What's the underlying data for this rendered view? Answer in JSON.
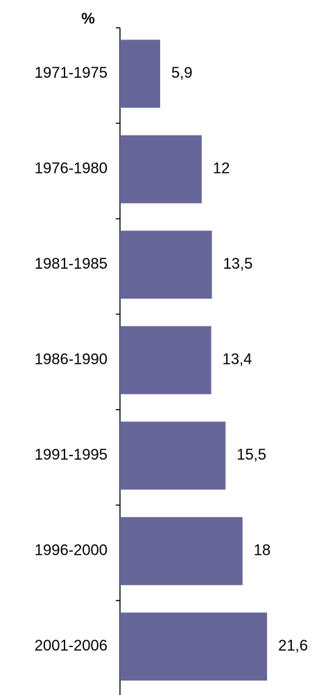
{
  "chart_data": {
    "type": "hbar",
    "axis_label": "%",
    "categories": [
      "1971-1975",
      "1976-1980",
      "1981-1985",
      "1986-1990",
      "1991-1995",
      "1996-2000",
      "2001-2006"
    ],
    "values": [
      5.9,
      12,
      13.5,
      13.4,
      15.5,
      18,
      21.6
    ],
    "value_labels": [
      "5,9",
      "12",
      "13,5",
      "13,4",
      "15,5",
      "18",
      "21,6"
    ],
    "color": "#666699"
  }
}
